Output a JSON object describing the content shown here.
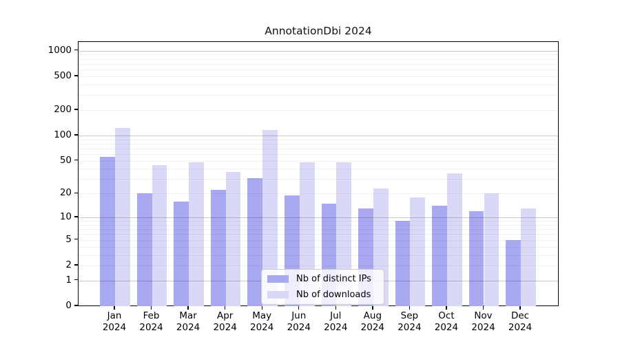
{
  "chart_data": {
    "type": "bar",
    "title": "AnnotationDbi 2024",
    "categories": [
      "Jan 2024",
      "Feb 2024",
      "Mar 2024",
      "Apr 2024",
      "May 2024",
      "Jun 2024",
      "Jul 2024",
      "Aug 2024",
      "Sep 2024",
      "Oct 2024",
      "Nov 2024",
      "Dec 2024"
    ],
    "series": [
      {
        "name": "Nb of distinct IPs",
        "color": "#a9a9f1",
        "values": [
          56,
          20,
          16,
          22,
          31,
          19,
          15,
          13,
          9,
          14,
          12,
          5
        ]
      },
      {
        "name": "Nb of downloads",
        "color": "#d9d9f7",
        "values": [
          122,
          44,
          48,
          37,
          116,
          48,
          48,
          23,
          18,
          35,
          20,
          13
        ]
      }
    ],
    "y_scale": "log1p",
    "y_ticks": [
      0,
      1,
      2,
      5,
      10,
      20,
      50,
      100,
      200,
      500,
      1000
    ],
    "ylim": [
      0,
      1243
    ],
    "xlabel": "",
    "ylabel": "",
    "grid": true,
    "legend_position": "lower center"
  }
}
